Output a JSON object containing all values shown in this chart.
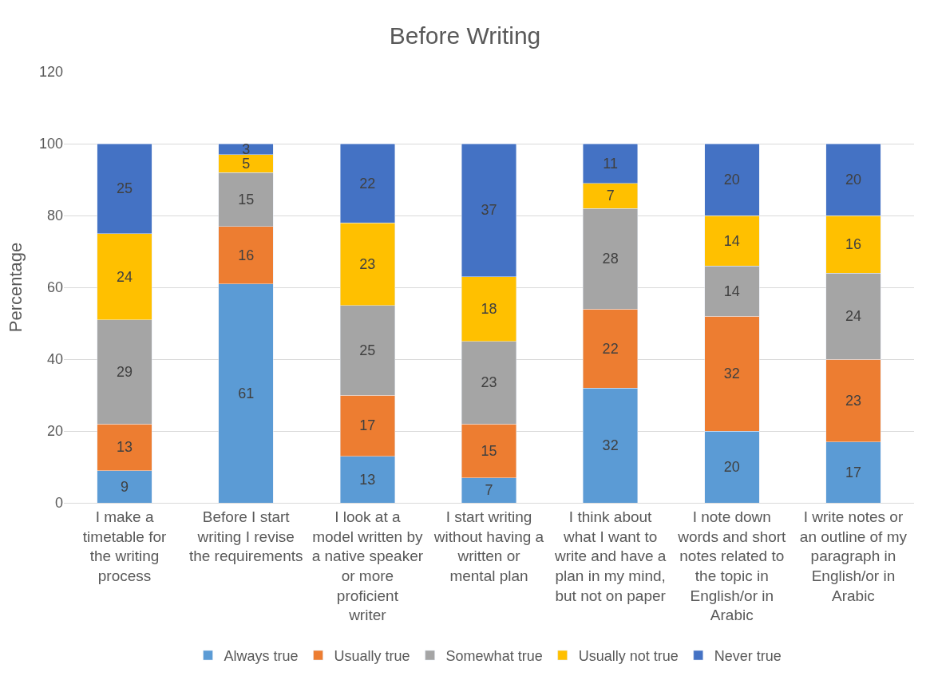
{
  "chart_data": {
    "type": "bar",
    "title": "Before Writing",
    "ylabel": "Percentage",
    "stacked": true,
    "categories": [
      "I make a timetable for the writing process",
      "Before I start writing I revise the requirements",
      "I look at a model written by a native speaker or more proficient writer",
      "I start writing without having a written or mental plan",
      "I think about what I want to write and have a plan in my mind, but not on paper",
      "I note down words and short notes related to the topic in English/or in Arabic",
      "I write notes or an outline of my paragraph in English/or in Arabic"
    ],
    "series": [
      {
        "name": "Always true",
        "color": "#5b9bd5",
        "values": [
          9,
          61,
          13,
          7,
          32,
          20,
          17
        ]
      },
      {
        "name": "Usually true",
        "color": "#ed7d31",
        "values": [
          13,
          16,
          17,
          15,
          22,
          32,
          23
        ]
      },
      {
        "name": "Somewhat true",
        "color": "#a5a5a5",
        "values": [
          29,
          15,
          25,
          23,
          28,
          14,
          24
        ]
      },
      {
        "name": "Usually not true",
        "color": "#ffc000",
        "values": [
          24,
          5,
          23,
          18,
          7,
          14,
          16
        ]
      },
      {
        "name": "Never true",
        "color": "#4472c4",
        "values": [
          25,
          3,
          22,
          37,
          11,
          20,
          20
        ]
      }
    ],
    "ylim": [
      0,
      120
    ],
    "yticks": [
      0,
      20,
      40,
      60,
      80,
      100,
      120
    ],
    "grid": "y",
    "legend": "bottom",
    "data_labels": true
  }
}
